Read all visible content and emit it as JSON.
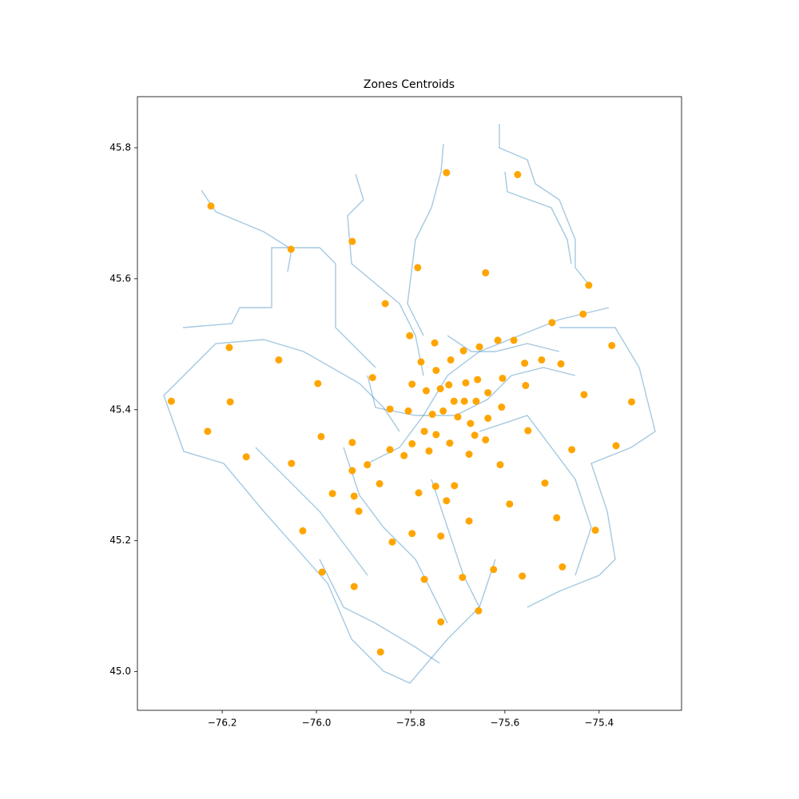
{
  "chart_data": {
    "type": "scatter",
    "title": "Zones Centroids",
    "color": "#ffa500",
    "x": [
      -76.224,
      -76.054,
      -75.924,
      -75.724,
      -75.573,
      -75.785,
      -75.641,
      -75.854,
      -75.422,
      -75.434,
      -75.5,
      -76.185,
      -76.08,
      -75.802,
      -75.749,
      -75.688,
      -75.654,
      -75.615,
      -75.581,
      -75.373,
      -76.308,
      -76.183,
      -75.997,
      -75.881,
      -75.778,
      -75.715,
      -75.746,
      -75.797,
      -75.767,
      -75.737,
      -75.719,
      -75.683,
      -75.658,
      -75.605,
      -75.636,
      -75.558,
      -75.522,
      -75.481,
      -75.556,
      -75.432,
      -75.331,
      -75.844,
      -75.805,
      -75.754,
      -75.731,
      -75.708,
      -75.686,
      -75.661,
      -75.607,
      -75.7,
      -75.673,
      -75.636,
      -76.231,
      -75.99,
      -75.771,
      -75.746,
      -75.717,
      -75.664,
      -75.641,
      -75.551,
      -75.924,
      -75.797,
      -75.364,
      -76.149,
      -76.053,
      -75.892,
      -75.844,
      -75.814,
      -75.761,
      -75.676,
      -75.924,
      -75.61,
      -75.458,
      -75.866,
      -75.747,
      -75.707,
      -75.783,
      -75.966,
      -75.92,
      -75.724,
      -75.91,
      -75.59,
      -75.515,
      -75.49,
      -75.676,
      -76.029,
      -75.797,
      -75.736,
      -75.408,
      -75.839,
      -75.988,
      -75.771,
      -75.69,
      -75.624,
      -75.563,
      -75.478,
      -75.92,
      -75.656,
      -75.736,
      -75.864
    ],
    "values": [
      45.711,
      45.645,
      45.657,
      45.762,
      45.759,
      45.617,
      45.609,
      45.562,
      45.59,
      45.546,
      45.533,
      45.495,
      45.476,
      45.513,
      45.502,
      45.49,
      45.496,
      45.506,
      45.506,
      45.498,
      45.413,
      45.412,
      45.44,
      45.449,
      45.473,
      45.476,
      45.46,
      45.439,
      45.429,
      45.432,
      45.438,
      45.441,
      45.446,
      45.448,
      45.426,
      45.471,
      45.476,
      45.47,
      45.437,
      45.423,
      45.412,
      45.401,
      45.398,
      45.393,
      45.398,
      45.413,
      45.413,
      45.413,
      45.404,
      45.389,
      45.379,
      45.387,
      45.367,
      45.359,
      45.367,
      45.362,
      45.349,
      45.361,
      45.354,
      45.368,
      45.35,
      45.348,
      45.345,
      45.328,
      45.318,
      45.316,
      45.339,
      45.33,
      45.337,
      45.332,
      45.307,
      45.316,
      45.339,
      45.287,
      45.283,
      45.284,
      45.273,
      45.272,
      45.268,
      45.261,
      45.245,
      45.256,
      45.288,
      45.235,
      45.23,
      45.215,
      45.211,
      45.207,
      45.216,
      45.198,
      45.152,
      45.141,
      45.144,
      45.156,
      45.146,
      45.16,
      45.13,
      45.093,
      45.076,
      45.03
    ],
    "xlim": [
      -76.38,
      -75.225
    ],
    "ylim": [
      44.941,
      45.878
    ],
    "xticks": [
      {
        "value": -76.2,
        "label": "−76.2"
      },
      {
        "value": -76.0,
        "label": "−76.0"
      },
      {
        "value": -75.8,
        "label": "−75.8"
      },
      {
        "value": -75.6,
        "label": "−75.6"
      },
      {
        "value": -75.4,
        "label": "−75.4"
      }
    ],
    "yticks": [
      {
        "value": 45.0,
        "label": "45.0"
      },
      45.2,
      45.4,
      45.6,
      45.8
    ],
    "grid": false
  }
}
